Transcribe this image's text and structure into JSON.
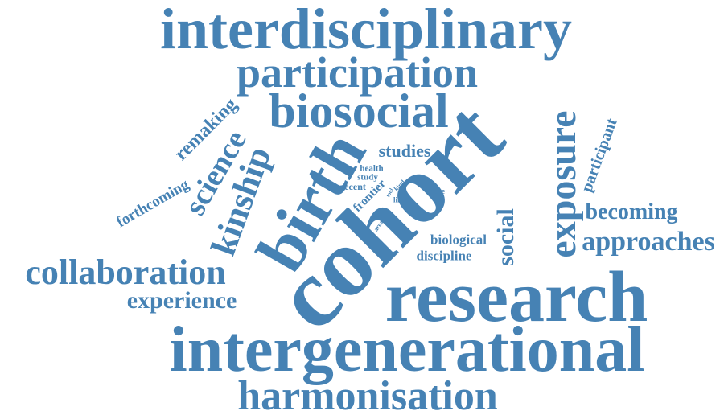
{
  "accent_color": "#4682b4",
  "words": [
    {
      "text": "interdisciplinary"
    },
    {
      "text": "participation"
    },
    {
      "text": "biosocial"
    },
    {
      "text": "remaking"
    },
    {
      "text": "science"
    },
    {
      "text": "kinship"
    },
    {
      "text": "birth"
    },
    {
      "text": "cohort"
    },
    {
      "text": "exposure"
    },
    {
      "text": "participant"
    },
    {
      "text": "studies"
    },
    {
      "text": "health"
    },
    {
      "text": "study"
    },
    {
      "text": "recent"
    },
    {
      "text": "frontier"
    },
    {
      "text": "tool"
    },
    {
      "text": "kind"
    },
    {
      "text": "life"
    },
    {
      "text": "more"
    },
    {
      "text": "area"
    },
    {
      "text": "forthcoming"
    },
    {
      "text": "social"
    },
    {
      "text": "becoming"
    },
    {
      "text": "approaches"
    },
    {
      "text": "biological"
    },
    {
      "text": "discipline"
    },
    {
      "text": "collaboration"
    },
    {
      "text": "experience"
    },
    {
      "text": "research"
    },
    {
      "text": "intergenerational"
    },
    {
      "text": "harmonisation"
    }
  ]
}
